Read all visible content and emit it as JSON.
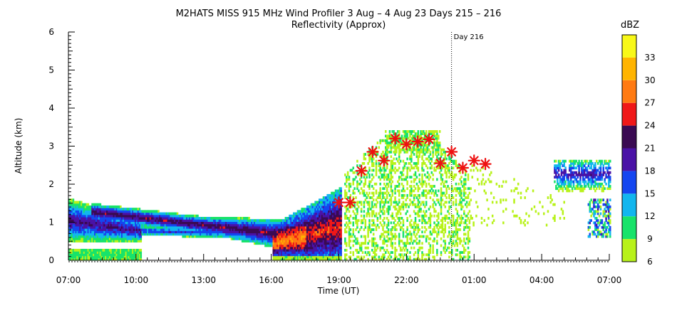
{
  "chart_data": {
    "type": "heatmap",
    "title": "M2HATS MISS 915 MHz Wind Profiler   3 Aug –  4 Aug 23 Days 215 – 216",
    "subtitle": "Reflectivity (Approx)",
    "xlabel": "Time (UT)",
    "ylabel": "Altitude (km)",
    "x_ticks": [
      "07:00",
      "10:00",
      "13:00",
      "16:00",
      "19:00",
      "22:00",
      "01:00",
      "04:00",
      "07:00"
    ],
    "x_tick_hours": [
      0,
      3,
      6,
      9,
      12,
      15,
      18,
      21,
      24
    ],
    "xlim_hours_since_0700": [
      0,
      24
    ],
    "y_ticks": [
      "0",
      "1",
      "2",
      "3",
      "4",
      "5",
      "6"
    ],
    "ylim": [
      0,
      6
    ],
    "day_marker": {
      "label": "Day 216",
      "hour": 17.0
    },
    "colorbar": {
      "unit": "dBZ",
      "tick_labels": [
        "6",
        "9",
        "12",
        "15",
        "18",
        "21",
        "24",
        "27",
        "30",
        "33"
      ],
      "bins": [
        {
          "min": 6,
          "color": "#b8f21a"
        },
        {
          "min": 9,
          "color": "#18e36a"
        },
        {
          "min": 12,
          "color": "#12b6ee"
        },
        {
          "min": 15,
          "color": "#1446f0"
        },
        {
          "min": 18,
          "color": "#4a12a6"
        },
        {
          "min": 21,
          "color": "#3a0a52"
        },
        {
          "min": 24,
          "color": "#f01818"
        },
        {
          "min": 27,
          "color": "#ff7a12"
        },
        {
          "min": 30,
          "color": "#ffb400"
        },
        {
          "min": 33,
          "color": "#f8f818"
        }
      ]
    },
    "star_markers": {
      "color": "#ee1111",
      "points": [
        {
          "hour": 12.0,
          "altitude_km": 1.52
        },
        {
          "hour": 12.5,
          "altitude_km": 1.52
        },
        {
          "hour": 13.0,
          "altitude_km": 2.35
        },
        {
          "hour": 13.5,
          "altitude_km": 2.85
        },
        {
          "hour": 14.0,
          "altitude_km": 2.62
        },
        {
          "hour": 14.5,
          "altitude_km": 3.2
        },
        {
          "hour": 15.0,
          "altitude_km": 3.05
        },
        {
          "hour": 15.5,
          "altitude_km": 3.12
        },
        {
          "hour": 16.0,
          "altitude_km": 3.18
        },
        {
          "hour": 16.5,
          "altitude_km": 2.55
        },
        {
          "hour": 17.0,
          "altitude_km": 2.85
        },
        {
          "hour": 17.5,
          "altitude_km": 2.43
        },
        {
          "hour": 18.0,
          "altitude_km": 2.62
        },
        {
          "hour": 18.5,
          "altitude_km": 2.53
        }
      ]
    },
    "echo_regions": [
      {
        "name": "morning-layer",
        "hours": [
          0,
          2.5
        ],
        "altitude_km": [
          0.4,
          1.6
        ],
        "peak_dbz": 18
      },
      {
        "name": "afternoon-boundary-layer",
        "hours": [
          2.5,
          9.5
        ],
        "altitude_km": [
          0.3,
          1.2
        ],
        "peak_dbz": 21
      },
      {
        "name": "pre-convection",
        "hours": [
          9.5,
          12.0
        ],
        "altitude_km": [
          0.1,
          1.9
        ],
        "peak_dbz": 27
      },
      {
        "name": "convective-plumes",
        "hours": [
          13.0,
          17.5
        ],
        "altitude_km": [
          0.0,
          3.6
        ],
        "peak_dbz": 9
      },
      {
        "name": "late-layer",
        "hours": [
          22.0,
          24.0
        ],
        "altitude_km": [
          0.8,
          2.6
        ],
        "peak_dbz": 18
      }
    ]
  }
}
